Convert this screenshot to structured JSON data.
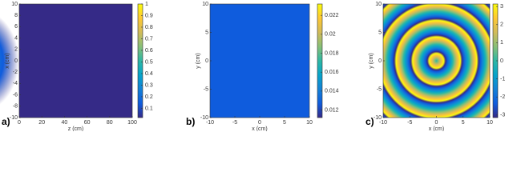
{
  "chart_data": [
    {
      "type": "heatmap",
      "label": "a)",
      "xlabel": "z (cm)",
      "ylabel": "x (cm)",
      "xlim": [
        0,
        100
      ],
      "xticks": [
        0,
        20,
        40,
        60,
        80,
        100
      ],
      "ylim": [
        -10,
        10
      ],
      "yticks": [
        -10,
        -8,
        -6,
        -4,
        -2,
        0,
        2,
        4,
        6,
        8,
        10
      ],
      "clim": [
        0.02,
        1
      ],
      "cticks": [
        0.1,
        0.2,
        0.3,
        0.4,
        0.5,
        0.6,
        0.7,
        0.8,
        0.9,
        1
      ],
      "pattern": "beam",
      "colormap": [
        "#352a87",
        "#0f5cdd",
        "#1481d6",
        "#06a4ca",
        "#2eb7a4",
        "#87bf77",
        "#d1bb59",
        "#fec832",
        "#f9fb0e"
      ]
    },
    {
      "type": "heatmap",
      "label": "b)",
      "xlabel": "x (cm)",
      "ylabel": "y (cm)",
      "xlim": [
        -10,
        10
      ],
      "xticks": [
        -10,
        -5,
        0,
        5,
        10
      ],
      "ylim": [
        -10,
        10
      ],
      "yticks": [
        -10,
        -5,
        0,
        5,
        10
      ],
      "clim": [
        0.0112,
        0.0232
      ],
      "cticks": [
        0.012,
        0.014,
        0.016,
        0.018,
        0.02,
        0.022
      ],
      "pattern": "gaussian",
      "colormap": [
        "#352a87",
        "#0f5cdd",
        "#1481d6",
        "#06a4ca",
        "#2eb7a4",
        "#87bf77",
        "#d1bb59",
        "#fec832",
        "#f9fb0e"
      ]
    },
    {
      "type": "heatmap",
      "label": "c)",
      "xlabel": "x (cm)",
      "ylabel": "y (cm)",
      "xlim": [
        -10,
        10
      ],
      "xticks": [
        -10,
        -5,
        0,
        5,
        10
      ],
      "ylim": [
        -10,
        10
      ],
      "yticks": [
        -10,
        -5,
        0,
        5,
        10
      ],
      "clim": [
        -3.14,
        3.14
      ],
      "cticks": [
        -3,
        -2,
        -1,
        0,
        1,
        2,
        3
      ],
      "pattern": "phase",
      "colormap": [
        "#352a87",
        "#0f5cdd",
        "#1481d6",
        "#06a4ca",
        "#2eb7a4",
        "#87bf77",
        "#d1bb59",
        "#fec832",
        "#f9fb0e"
      ]
    }
  ]
}
